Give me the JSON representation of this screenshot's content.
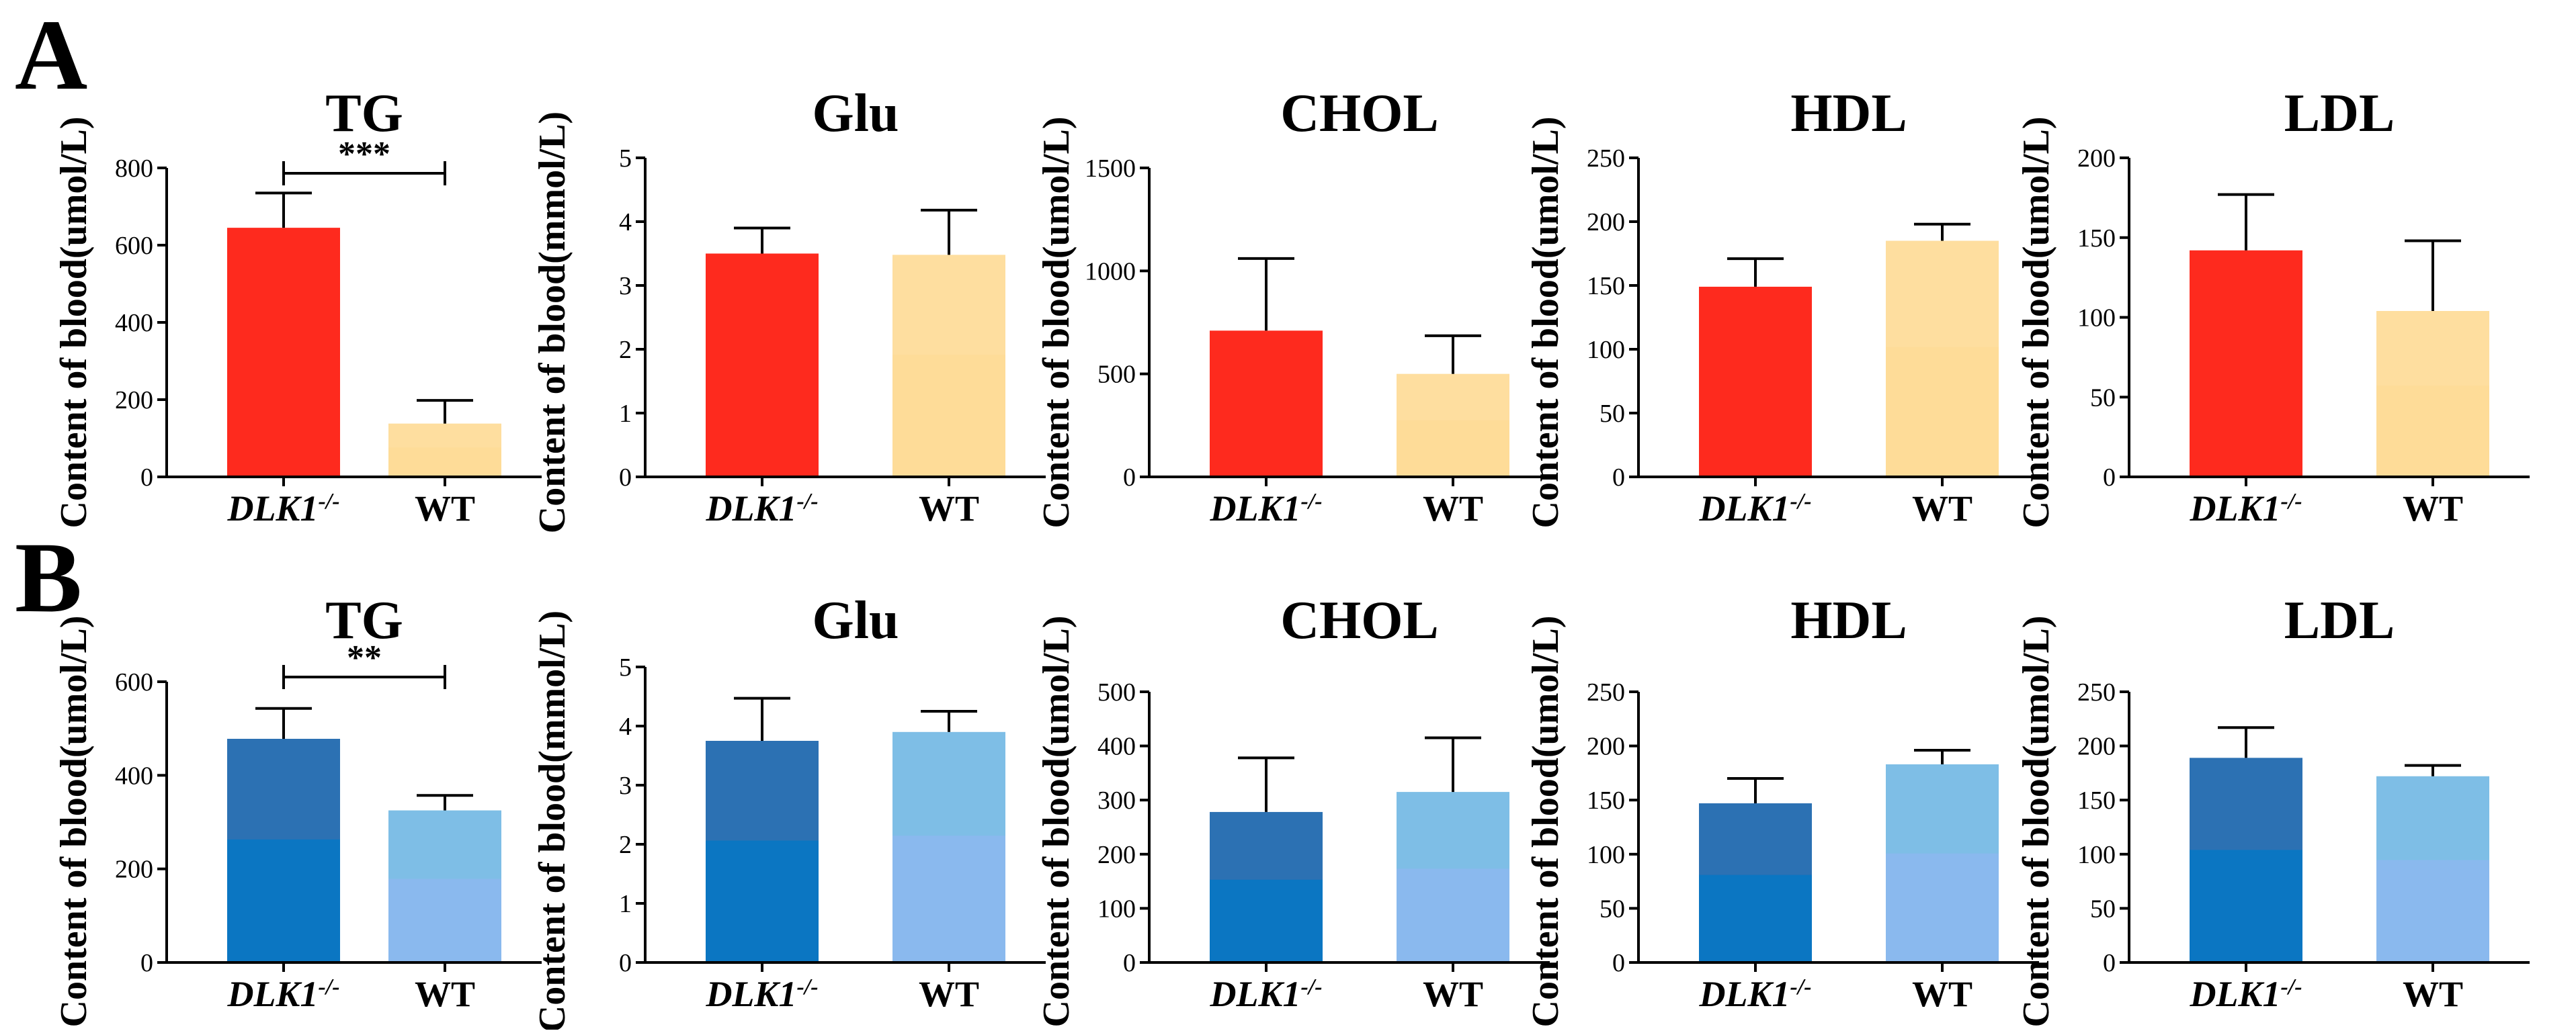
{
  "panels": [
    {
      "id": "A",
      "label": "A"
    },
    {
      "id": "B",
      "label": "B"
    }
  ],
  "chart_data": [
    {
      "panel": "A",
      "type": "bar",
      "title": "TG",
      "ylabel": "Content of blood(umol/L)",
      "ylim": [
        0,
        800
      ],
      "yticks": [
        0,
        200,
        400,
        600,
        800
      ],
      "categories": [
        {
          "main": "DLK1",
          "sup": "-/-",
          "italic": true
        },
        {
          "main": "WT",
          "sup": "",
          "italic": false
        }
      ],
      "values": [
        645,
        138
      ],
      "errors": [
        90,
        60
      ],
      "colors": [
        "#fe2a1e",
        "#fede9f"
      ],
      "lower_colors": [
        "#fe2a1e",
        "#fedc98"
      ],
      "significance": "***"
    },
    {
      "panel": "A",
      "type": "bar",
      "title": "Glu",
      "ylabel": "Content of blood(mmol/L)",
      "ylim": [
        0,
        5
      ],
      "yticks": [
        0,
        1,
        2,
        3,
        4,
        5
      ],
      "categories": [
        {
          "main": "DLK1",
          "sup": "-/-",
          "italic": true
        },
        {
          "main": "WT",
          "sup": "",
          "italic": false
        }
      ],
      "values": [
        3.5,
        3.48
      ],
      "errors": [
        0.4,
        0.7
      ],
      "colors": [
        "#fe2a1e",
        "#fede9f"
      ],
      "lower_colors": [
        "#fe2a1e",
        "#fedc98"
      ],
      "significance": ""
    },
    {
      "panel": "A",
      "type": "bar",
      "title": "CHOL",
      "ylabel": "Content of blood(umol/L)",
      "ylim": [
        0,
        1500
      ],
      "yticks": [
        0,
        500,
        1000,
        1500
      ],
      "categories": [
        {
          "main": "DLK1",
          "sup": "-/-",
          "italic": true
        },
        {
          "main": "WT",
          "sup": "",
          "italic": false
        }
      ],
      "values": [
        710,
        500
      ],
      "errors": [
        350,
        185
      ],
      "colors": [
        "#fe2a1e",
        "#fede9f"
      ],
      "lower_colors": [
        "#fe2a1e",
        "#fedc98"
      ],
      "significance": ""
    },
    {
      "panel": "A",
      "type": "bar",
      "title": "HDL",
      "ylabel": "Content of blood(umol/L)",
      "ylim": [
        0,
        250
      ],
      "yticks": [
        0,
        50,
        100,
        150,
        200,
        250
      ],
      "categories": [
        {
          "main": "DLK1",
          "sup": "-/-",
          "italic": true
        },
        {
          "main": "WT",
          "sup": "",
          "italic": false
        }
      ],
      "values": [
        149,
        185
      ],
      "errors": [
        22,
        13
      ],
      "colors": [
        "#fe2a1e",
        "#fede9f"
      ],
      "lower_colors": [
        "#fe2a1e",
        "#fedc98"
      ],
      "significance": ""
    },
    {
      "panel": "A",
      "type": "bar",
      "title": "LDL",
      "ylabel": "Content of blood(umol/L)",
      "ylim": [
        0,
        200
      ],
      "yticks": [
        0,
        50,
        100,
        150,
        200
      ],
      "categories": [
        {
          "main": "DLK1",
          "sup": "-/-",
          "italic": true
        },
        {
          "main": "WT",
          "sup": "",
          "italic": false
        }
      ],
      "values": [
        142,
        104
      ],
      "errors": [
        35,
        44
      ],
      "colors": [
        "#fe2a1e",
        "#fede9f"
      ],
      "lower_colors": [
        "#fe2a1e",
        "#fedc98"
      ],
      "significance": ""
    },
    {
      "panel": "B",
      "type": "bar",
      "title": "TG",
      "ylabel": "Content of blood(umol/L)",
      "ylim": [
        0,
        600
      ],
      "yticks": [
        0,
        200,
        400,
        600
      ],
      "categories": [
        {
          "main": "DLK1",
          "sup": "-/-",
          "italic": true
        },
        {
          "main": "WT",
          "sup": "",
          "italic": false
        }
      ],
      "values": [
        478,
        325
      ],
      "errors": [
        65,
        32
      ],
      "colors": [
        "#2c71b3",
        "#7ebee6"
      ],
      "lower_colors": [
        "#0b76c2",
        "#8ab9ee"
      ],
      "significance": "**"
    },
    {
      "panel": "B",
      "type": "bar",
      "title": "Glu",
      "ylabel": "Content of blood(mmol/L)",
      "ylim": [
        0,
        5
      ],
      "yticks": [
        0,
        1,
        2,
        3,
        4,
        5
      ],
      "categories": [
        {
          "main": "DLK1",
          "sup": "-/-",
          "italic": true
        },
        {
          "main": "WT",
          "sup": "",
          "italic": false
        }
      ],
      "values": [
        3.75,
        3.9
      ],
      "errors": [
        0.72,
        0.35
      ],
      "colors": [
        "#2c71b3",
        "#7ebee6"
      ],
      "lower_colors": [
        "#0b76c2",
        "#8ab9ee"
      ],
      "significance": ""
    },
    {
      "panel": "B",
      "type": "bar",
      "title": "CHOL",
      "ylabel": "Content of blood(umol/L)",
      "ylim": [
        0,
        500
      ],
      "yticks": [
        0,
        100,
        200,
        300,
        400,
        500
      ],
      "categories": [
        {
          "main": "DLK1",
          "sup": "-/-",
          "italic": true
        },
        {
          "main": "WT",
          "sup": "",
          "italic": false
        }
      ],
      "values": [
        278,
        315
      ],
      "errors": [
        100,
        100
      ],
      "colors": [
        "#2c71b3",
        "#7ebee6"
      ],
      "lower_colors": [
        "#0b76c2",
        "#8ab9ee"
      ],
      "significance": ""
    },
    {
      "panel": "B",
      "type": "bar",
      "title": "HDL",
      "ylabel": "Content of blood(umol/L)",
      "ylim": [
        0,
        250
      ],
      "yticks": [
        0,
        50,
        100,
        150,
        200,
        250
      ],
      "categories": [
        {
          "main": "DLK1",
          "sup": "-/-",
          "italic": true
        },
        {
          "main": "WT",
          "sup": "",
          "italic": false
        }
      ],
      "values": [
        147,
        183
      ],
      "errors": [
        23,
        13
      ],
      "colors": [
        "#2c71b3",
        "#7ebee6"
      ],
      "lower_colors": [
        "#0b76c2",
        "#8ab9ee"
      ],
      "significance": ""
    },
    {
      "panel": "B",
      "type": "bar",
      "title": "LDL",
      "ylabel": "Content of blood(umol/L)",
      "ylim": [
        0,
        250
      ],
      "yticks": [
        0,
        50,
        100,
        150,
        200,
        250
      ],
      "categories": [
        {
          "main": "DLK1",
          "sup": "-/-",
          "italic": true
        },
        {
          "main": "WT",
          "sup": "",
          "italic": false
        }
      ],
      "values": [
        189,
        172
      ],
      "errors": [
        28,
        10
      ],
      "colors": [
        "#2c71b3",
        "#7ebee6"
      ],
      "lower_colors": [
        "#0b76c2",
        "#8ab9ee"
      ],
      "significance": ""
    }
  ]
}
